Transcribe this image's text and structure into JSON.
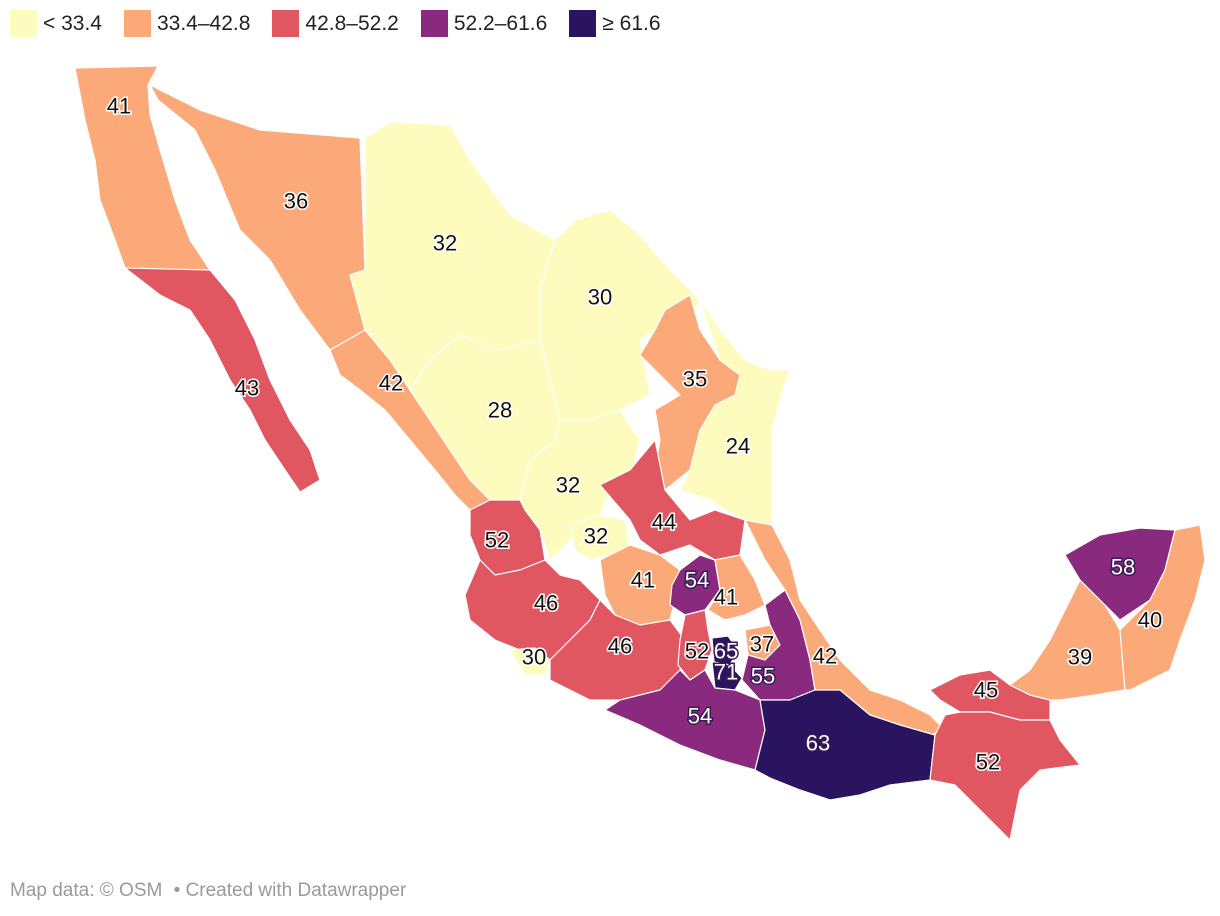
{
  "legend": [
    {
      "label": "< 33.4",
      "color": "#fefbbe"
    },
    {
      "label": "33.4–42.8",
      "color": "#fca97a"
    },
    {
      "label": "42.8–52.2",
      "color": "#e05661"
    },
    {
      "label": "52.2–61.6",
      "color": "#8a2a7e"
    },
    {
      "label": "≥ 61.6",
      "color": "#2a1460"
    }
  ],
  "regions": [
    {
      "name": "Baja California",
      "value": 41,
      "color": "#fca97a"
    },
    {
      "name": "Sonora",
      "value": 36,
      "color": "#fca97a"
    },
    {
      "name": "Chihuahua",
      "value": 32,
      "color": "#fefbbe"
    },
    {
      "name": "Coahuila",
      "value": 30,
      "color": "#fefbbe"
    },
    {
      "name": "Nuevo León",
      "value": 35,
      "color": "#fca97a"
    },
    {
      "name": "Tamaulipas",
      "value": 24,
      "color": "#fefbbe"
    },
    {
      "name": "Baja California Sur",
      "value": 43,
      "color": "#e05661"
    },
    {
      "name": "Sinaloa",
      "value": 42,
      "color": "#fca97a"
    },
    {
      "name": "Durango",
      "value": 28,
      "color": "#fefbbe"
    },
    {
      "name": "Zacatecas",
      "value": 32,
      "color": "#fefbbe"
    },
    {
      "name": "Aguascalientes",
      "value": 32,
      "color": "#fefbbe"
    },
    {
      "name": "San Luis Potosí",
      "value": 44,
      "color": "#e05661"
    },
    {
      "name": "Nayarit",
      "value": 52,
      "color": "#e05661"
    },
    {
      "name": "Jalisco",
      "value": 46,
      "color": "#e05661"
    },
    {
      "name": "Colima",
      "value": 30,
      "color": "#fefbbe"
    },
    {
      "name": "Guanajuato",
      "value": 41,
      "color": "#fca97a"
    },
    {
      "name": "Querétaro",
      "value": 54,
      "color": "#8a2a7e"
    },
    {
      "name": "Hidalgo",
      "value": 41,
      "color": "#fca97a"
    },
    {
      "name": "Michoacán",
      "value": 46,
      "color": "#e05661"
    },
    {
      "name": "Estado de México",
      "value": 52,
      "color": "#e05661"
    },
    {
      "name": "Ciudad de México",
      "value": 65,
      "color": "#2a1460"
    },
    {
      "name": "Morelos",
      "value": 71,
      "color": "#2a1460"
    },
    {
      "name": "Tlaxcala",
      "value": 37,
      "color": "#fca97a"
    },
    {
      "name": "Puebla",
      "value": 55,
      "color": "#8a2a7e"
    },
    {
      "name": "Veracruz",
      "value": 42,
      "color": "#fca97a"
    },
    {
      "name": "Guerrero",
      "value": 54,
      "color": "#8a2a7e"
    },
    {
      "name": "Oaxaca",
      "value": 63,
      "color": "#2a1460"
    },
    {
      "name": "Tabasco",
      "value": 45,
      "color": "#e05661"
    },
    {
      "name": "Chiapas",
      "value": 52,
      "color": "#e05661"
    },
    {
      "name": "Campeche",
      "value": 39,
      "color": "#fca97a"
    },
    {
      "name": "Yucatán",
      "value": 58,
      "color": "#8a2a7e"
    },
    {
      "name": "Quintana Roo",
      "value": 40,
      "color": "#fca97a"
    }
  ],
  "footer": {
    "map_data": "Map data: © OSM",
    "credit": "• Created with Datawrapper"
  }
}
